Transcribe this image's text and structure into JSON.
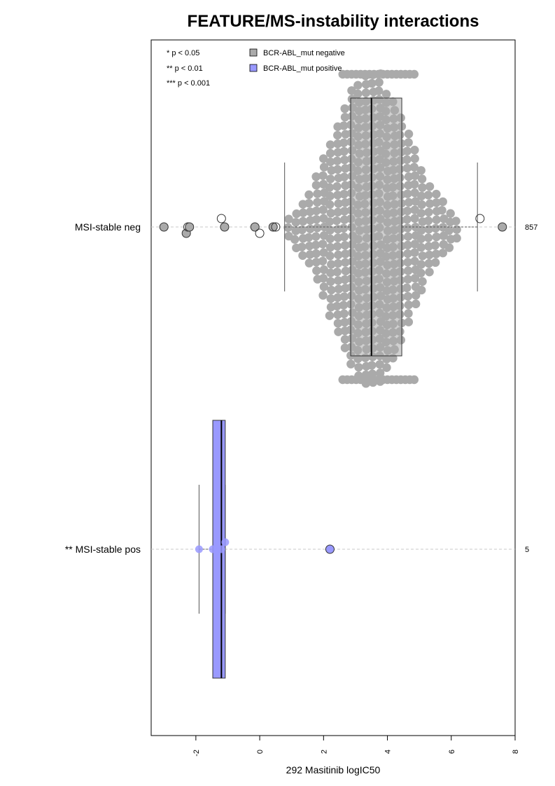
{
  "chart_data": {
    "type": "boxplot-beeswarm",
    "title": "FEATURE/MS-instability interactions",
    "xlabel": "292 Masitinib logIC50",
    "xlim": [
      -3.4,
      8.0
    ],
    "x_ticks": [
      -2,
      0,
      2,
      4,
      6,
      8
    ],
    "significance_legend": [
      "* p < 0.05",
      "** p < 0.01",
      "*** p < 0.001"
    ],
    "legend": [
      {
        "name": "BCR-ABL_mut negative",
        "color": "#aaaaaa"
      },
      {
        "name": "BCR-ABL_mut positive",
        "color": "#9999ff"
      }
    ],
    "groups": [
      {
        "label": "MSI-stable neg",
        "count": "857",
        "color": "#aaaaaa",
        "box": {
          "whisker_low": 0.78,
          "q1": 2.85,
          "median": 3.5,
          "q3": 4.45,
          "whisker_high": 6.82
        },
        "outliers": [
          -3.0,
          -2.3,
          -2.25,
          -2.2,
          -1.2,
          -1.1,
          -0.15,
          0.0,
          0.42,
          0.5,
          6.9,
          7.6
        ],
        "n_points": 857
      },
      {
        "label": "** MSI-stable pos",
        "count": "5",
        "color": "#9999ff",
        "box": {
          "whisker_low": -1.9,
          "q1": -1.47,
          "median": -1.2,
          "q3": -1.08,
          "whisker_high": -1.08
        },
        "points": [
          -1.9,
          -1.47,
          -1.2,
          -1.08,
          2.2
        ],
        "outliers": [
          2.2
        ]
      }
    ]
  }
}
